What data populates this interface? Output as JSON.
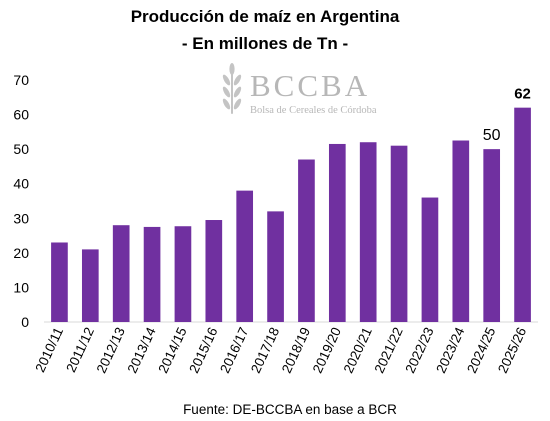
{
  "chart_data": {
    "type": "bar",
    "title": "Producción de maíz en Argentina",
    "subtitle": "- En millones de Tn -",
    "categories": [
      "2010/11",
      "2011/12",
      "2012/13",
      "2013/14",
      "2014/15",
      "2015/16",
      "2016/17",
      "2017/18",
      "2018/19",
      "2019/20",
      "2020/21",
      "2021/22",
      "2022/23",
      "2023/24",
      "2024/25",
      "2025/26"
    ],
    "values": [
      23,
      21,
      28,
      27.5,
      27.7,
      29.5,
      38,
      32,
      47,
      51.5,
      52,
      51,
      36,
      52.5,
      50,
      62
    ],
    "data_labels": [
      {
        "category": "2024/25",
        "text": "50",
        "bold": false
      },
      {
        "category": "2025/26",
        "text": "62",
        "bold": true
      }
    ],
    "ylim": [
      0,
      70
    ],
    "yticks": [
      0,
      10,
      20,
      30,
      40,
      50,
      60,
      70
    ],
    "grid": false,
    "bar_color": "#7030a0",
    "source": "Fuente: DE-BCCBA en base a BCR"
  },
  "watermark": {
    "logo_text": "BCCBA",
    "logo_subtext": "Bolsa de Cereales de Córdoba",
    "icon": "wheat-icon",
    "color": "#b7b7b7"
  }
}
